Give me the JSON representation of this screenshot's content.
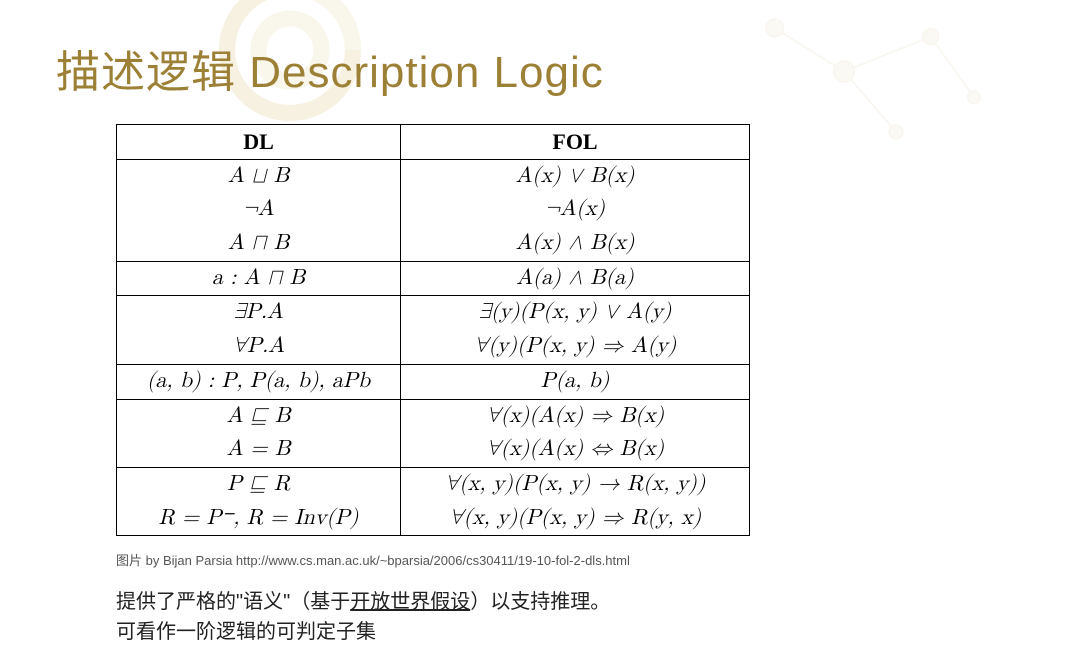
{
  "title": "描述逻辑 Description Logic",
  "table": {
    "headers": {
      "col1": "DL",
      "col2": "FOL"
    },
    "groups": [
      {
        "rows": [
          {
            "dl": "A ⊔ B",
            "fol": "A(x) ∨ B(x)"
          },
          {
            "dl": "¬A",
            "fol": "¬A(x)"
          },
          {
            "dl": "A ⊓ B",
            "fol": "A(x) ∧ B(x)"
          }
        ]
      },
      {
        "rows": [
          {
            "dl": "a : A ⊓ B",
            "fol": "A(a) ∧ B(a)"
          }
        ]
      },
      {
        "rows": [
          {
            "dl": "∃P.A",
            "fol": "∃(y)(P(x, y) ∨ A(y)"
          },
          {
            "dl": "∀P.A",
            "fol": "∀(y)(P(x, y) ⇒ A(y)"
          }
        ]
      },
      {
        "rows": [
          {
            "dl": "(a, b) : P, P(a, b), aPb",
            "fol": "P(a, b)"
          }
        ]
      },
      {
        "rows": [
          {
            "dl": "A ⊑ B",
            "fol": "∀(x)(A(x) ⇒ B(x)"
          },
          {
            "dl": "A = B",
            "fol": "∀(x)(A(x) ⇔ B(x)"
          }
        ]
      },
      {
        "rows": [
          {
            "dl": "P ⊑ R",
            "fol": "∀(x, y)(P(x, y) → R(x, y))"
          },
          {
            "dl": "R = P⁻, R = Inv(P)",
            "fol": "∀(x, y)(P(x, y) ⇒ R(y, x)"
          }
        ]
      }
    ]
  },
  "caption": "图片 by Bijan Parsia  http://www.cs.man.ac.uk/~bparsia/2006/cs30411/19-10-fol-2-dls.html",
  "note_line1_a": "提供了严格的\"语义\"（基于",
  "note_line1_b": "开放世界假设",
  "note_line1_c": "）以支持推理。",
  "note_line2": "可看作一阶逻辑的可判定子集",
  "colors": {
    "title": "#9c8035",
    "border": "#000000",
    "text": "#222222",
    "caption": "#555555",
    "bg": "#ffffff",
    "decor1": "#e8d8a8",
    "decor2": "#e8dcc0"
  }
}
